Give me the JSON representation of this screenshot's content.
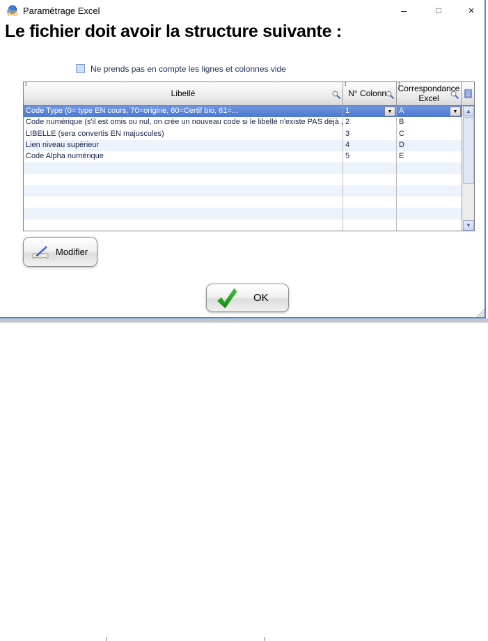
{
  "window": {
    "title": "Paramétrage Excel",
    "icon": "windev-logo",
    "controls": {
      "minimize": "–",
      "maximize": "□",
      "close": "×"
    }
  },
  "heading": "Le fichier doit avoir la structure suivante :",
  "checkbox": {
    "checked": false,
    "label": "Ne prends pas en compte les lignes et colonnes vide"
  },
  "table": {
    "columns": [
      {
        "label": "Libellé"
      },
      {
        "label": "N° Colonne"
      },
      {
        "label": "Correspondance Excel"
      }
    ],
    "rows": [
      {
        "libelle": "Code Type (0= type EN cours, 70=origine, 60=Certif bio, 61=...",
        "colonne": "1",
        "excel": "A",
        "selected": true,
        "has_dropdowns": true
      },
      {
        "libelle": "Code numérique (s'il est omis ou nul, on crée un nouveau code si le libellé n'existe PAS déjà , OU",
        "colonne": "2",
        "excel": "B"
      },
      {
        "libelle": "LIBELLE (sera convertis EN majuscules)",
        "colonne": "3",
        "excel": "C"
      },
      {
        "libelle": "Lien niveau supérieur",
        "colonne": "4",
        "excel": "D"
      },
      {
        "libelle": "Code Alpha numérique",
        "colonne": "5",
        "excel": "E"
      }
    ],
    "empty_row_count": 6
  },
  "icons": {
    "sort": "↕",
    "combo_arrow": "▼",
    "scroll_up": "▲",
    "scroll_down": "▼"
  },
  "buttons": {
    "modifier": "Modifier",
    "ok": "OK"
  },
  "colors": {
    "accent_border": "#4e87d3",
    "selected_row": "#4d79cd",
    "alt_row": "#edf3fc",
    "row_text": "#16244a",
    "checkbox_fill": "#cfdff9"
  }
}
